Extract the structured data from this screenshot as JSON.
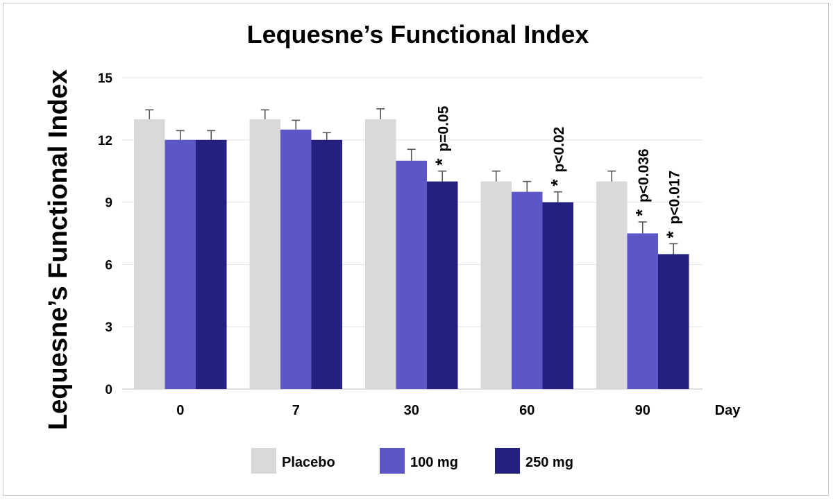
{
  "chart_data": {
    "type": "bar",
    "title": "Lequesne’s Functional Index",
    "ylabel": "Lequesne’s Functional Index",
    "xlabel": "Day",
    "ylim": [
      0,
      15
    ],
    "yticks": [
      0,
      3,
      6,
      9,
      12,
      15
    ],
    "grid": true,
    "legend_position": "bottom",
    "categories": [
      "0",
      "7",
      "30",
      "60",
      "90"
    ],
    "series": [
      {
        "name": "Placebo",
        "color": "#d9d9d9",
        "values": [
          13,
          13,
          13,
          10,
          10
        ],
        "errors": [
          0.45,
          0.45,
          0.5,
          0.5,
          0.5
        ]
      },
      {
        "name": "100 mg",
        "color": "#5b57c6",
        "values": [
          12,
          12.5,
          11,
          9.5,
          7.5
        ],
        "errors": [
          0.45,
          0.45,
          0.55,
          0.5,
          0.55
        ]
      },
      {
        "name": "250 mg",
        "color": "#23207f",
        "values": [
          12,
          12,
          10,
          9,
          6.5
        ],
        "errors": [
          0.45,
          0.35,
          0.5,
          0.5,
          0.5
        ]
      }
    ],
    "annotations": [
      {
        "category": "30",
        "series": "250 mg",
        "text": "p=0.05"
      },
      {
        "category": "60",
        "series": "250 mg",
        "text": "p<0.02"
      },
      {
        "category": "90",
        "series": "100 mg",
        "text": "p<0.036"
      },
      {
        "category": "90",
        "series": "250 mg",
        "text": "p<0.017"
      }
    ],
    "annotation_marker": "*"
  }
}
